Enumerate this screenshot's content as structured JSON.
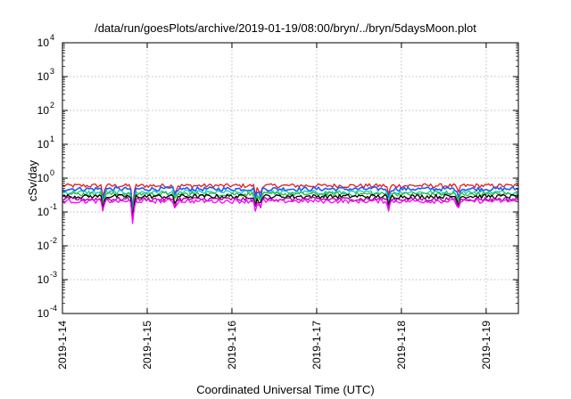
{
  "chart_data": {
    "type": "line",
    "title": "/data/run/goesPlots/archive/2019-01-19/08:00/bryn/../bryn/5daysMoon.plot",
    "xlabel": "Coordinated Universal Time (UTC)",
    "ylabel": "cSv/day",
    "yscale": "log",
    "ylim": [
      0.0001,
      10000
    ],
    "xlim_days": [
      0,
      5.38
    ],
    "grid": true,
    "x_ticks": [
      {
        "label": "2019-1-14",
        "day": 0
      },
      {
        "label": "2019-1-15",
        "day": 1
      },
      {
        "label": "2019-1-16",
        "day": 2
      },
      {
        "label": "2019-1-17",
        "day": 3
      },
      {
        "label": "2019-1-18",
        "day": 4
      },
      {
        "label": "2019-1-19",
        "day": 5
      }
    ],
    "y_ticks": [
      {
        "base": "10",
        "exp": "-4",
        "value": 0.0001
      },
      {
        "base": "10",
        "exp": "-3",
        "value": 0.001
      },
      {
        "base": "10",
        "exp": "-2",
        "value": 0.01
      },
      {
        "base": "10",
        "exp": "-1",
        "value": 0.1
      },
      {
        "base": "10",
        "exp": "0",
        "value": 1
      },
      {
        "base": "10",
        "exp": "1",
        "value": 10
      },
      {
        "base": "10",
        "exp": "2",
        "value": 100
      },
      {
        "base": "10",
        "exp": "3",
        "value": 1000
      },
      {
        "base": "10",
        "exp": "4",
        "value": 10000
      }
    ],
    "dips": [
      {
        "day": 0.48,
        "depth": 0.35
      },
      {
        "day": 0.83,
        "depth": 0.75
      },
      {
        "day": 1.33,
        "depth": 0.25
      },
      {
        "day": 2.28,
        "depth": 0.3
      },
      {
        "day": 2.33,
        "depth": 0.3
      },
      {
        "day": 3.85,
        "depth": 0.3
      },
      {
        "day": 4.67,
        "depth": 0.3
      }
    ],
    "series": [
      {
        "color": "#e8191a",
        "level": 0.6
      },
      {
        "color": "#1a5aff",
        "level": 0.48
      },
      {
        "color": "#18c8c0",
        "level": 0.38
      },
      {
        "color": "#30c030",
        "level": 0.34
      },
      {
        "color": "#000000",
        "level": 0.29
      },
      {
        "color": "#a000a0",
        "level": 0.24
      },
      {
        "color": "#ff00ff",
        "level": 0.21
      }
    ]
  }
}
